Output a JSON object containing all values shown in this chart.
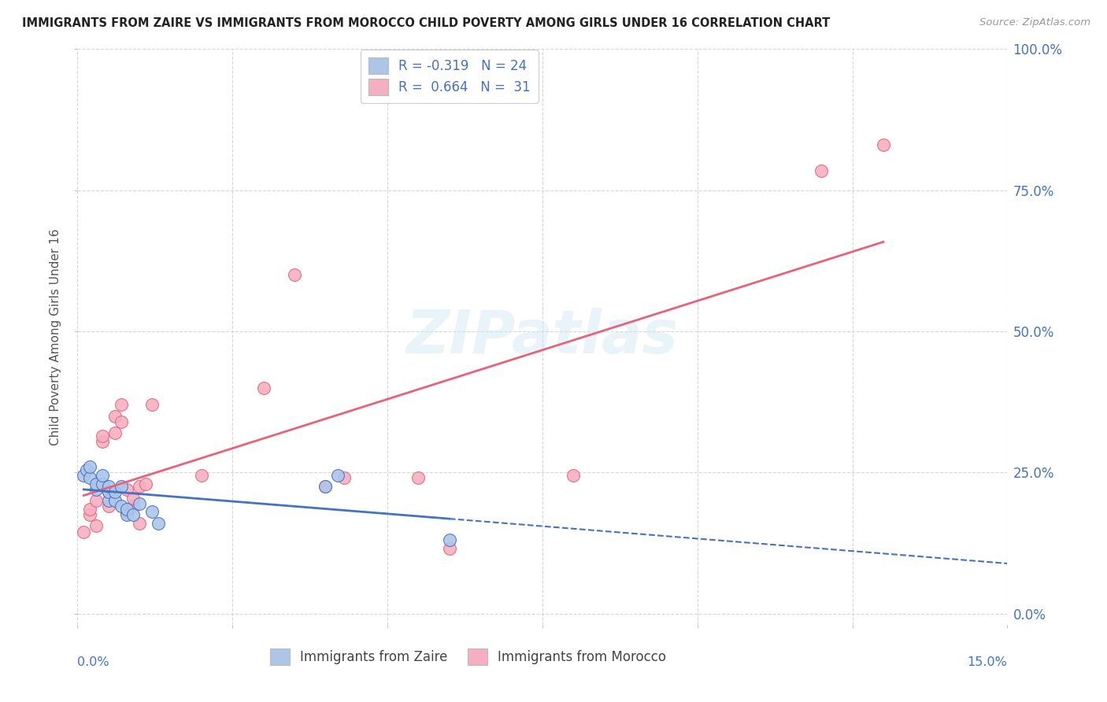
{
  "title": "IMMIGRANTS FROM ZAIRE VS IMMIGRANTS FROM MOROCCO CHILD POVERTY AMONG GIRLS UNDER 16 CORRELATION CHART",
  "source": "Source: ZipAtlas.com",
  "ylabel": "Child Poverty Among Girls Under 16",
  "right_yticklabels": [
    "0.0%",
    "25.0%",
    "50.0%",
    "75.0%",
    "100.0%"
  ],
  "zaire_R": -0.319,
  "zaire_N": 24,
  "morocco_R": 0.664,
  "morocco_N": 31,
  "zaire_color": "#adc6e8",
  "morocco_color": "#f5afc0",
  "zaire_line_color": "#4472c4",
  "morocco_line_color": "#e8637a",
  "background_color": "#ffffff",
  "watermark": "ZIPatlas",
  "zaire_x": [
    0.001,
    0.0015,
    0.002,
    0.002,
    0.003,
    0.003,
    0.004,
    0.004,
    0.005,
    0.005,
    0.005,
    0.006,
    0.006,
    0.007,
    0.007,
    0.008,
    0.008,
    0.009,
    0.01,
    0.012,
    0.013,
    0.04,
    0.042,
    0.06
  ],
  "zaire_y": [
    0.245,
    0.255,
    0.24,
    0.26,
    0.22,
    0.23,
    0.23,
    0.245,
    0.2,
    0.215,
    0.225,
    0.2,
    0.215,
    0.19,
    0.225,
    0.175,
    0.185,
    0.175,
    0.195,
    0.18,
    0.16,
    0.225,
    0.245,
    0.13
  ],
  "morocco_x": [
    0.001,
    0.002,
    0.002,
    0.003,
    0.003,
    0.004,
    0.004,
    0.005,
    0.005,
    0.006,
    0.006,
    0.007,
    0.007,
    0.008,
    0.008,
    0.009,
    0.009,
    0.01,
    0.01,
    0.011,
    0.012,
    0.02,
    0.03,
    0.035,
    0.04,
    0.043,
    0.055,
    0.06,
    0.08,
    0.12,
    0.13
  ],
  "morocco_y": [
    0.145,
    0.175,
    0.185,
    0.155,
    0.2,
    0.305,
    0.315,
    0.19,
    0.215,
    0.32,
    0.35,
    0.34,
    0.37,
    0.18,
    0.22,
    0.19,
    0.205,
    0.16,
    0.225,
    0.23,
    0.37,
    0.245,
    0.4,
    0.6,
    0.225,
    0.24,
    0.24,
    0.115,
    0.245,
    0.785,
    0.83
  ],
  "xmin": 0.0,
  "xmax": 0.15,
  "ymin": -0.02,
  "ymax": 1.0,
  "ytick_vals": [
    0.0,
    0.25,
    0.5,
    0.75,
    1.0
  ],
  "xtick_vals": [
    0.0,
    0.025,
    0.05,
    0.075,
    0.1,
    0.125,
    0.15
  ],
  "grid_color": "#cccccc",
  "legend_zaire_label": "R = -0.319   N = 24",
  "legend_morocco_label": "R =  0.664   N =  31",
  "bottom_legend_zaire": "Immigrants from Zaire",
  "bottom_legend_morocco": "Immigrants from Morocco"
}
